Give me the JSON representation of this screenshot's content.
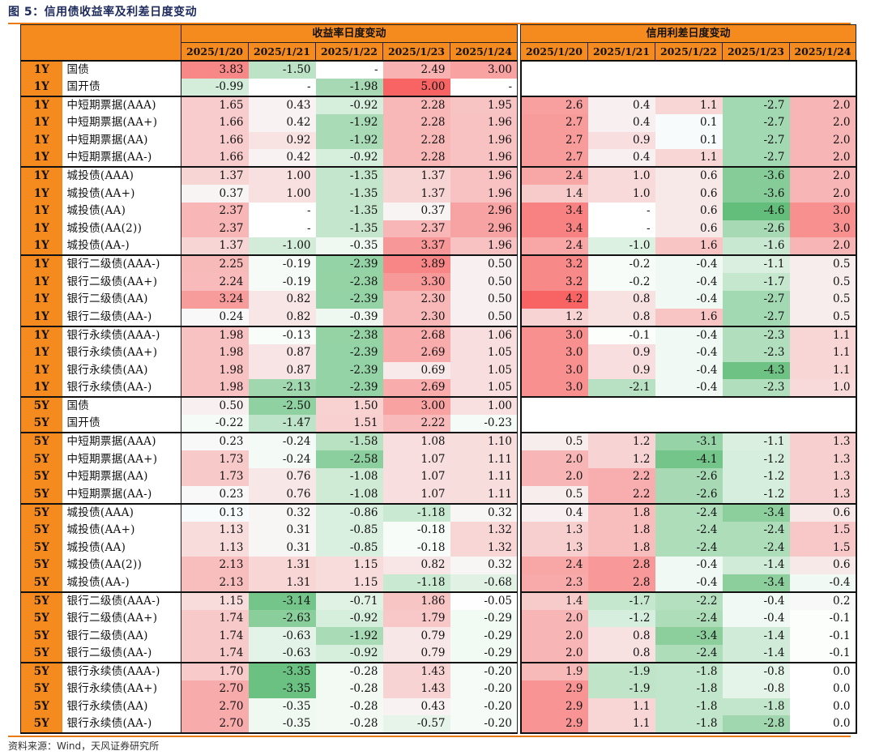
{
  "title": "图 5：信用债收益率及利差日度变动",
  "source": "资料来源：Wind，天风证券研究所",
  "header": {
    "yield_group": "收益率日度变动",
    "spread_group": "信用利差日度变动",
    "dates": [
      "2025/1/20",
      "2025/1/21",
      "2025/1/22",
      "2025/1/23",
      "2025/1/24"
    ]
  },
  "groups": [
    {
      "rows": [
        {
          "tenor": "1Y",
          "name": "国债",
          "yield": [
            "3.83",
            "-1.50",
            "-",
            "2.49",
            "3.00"
          ],
          "spread": null
        },
        {
          "tenor": "1Y",
          "name": "国开债",
          "yield": [
            "-0.99",
            "-",
            "-1.98",
            "5.00",
            "-"
          ],
          "spread": null
        }
      ]
    },
    {
      "rows": [
        {
          "tenor": "1Y",
          "name": "中短期票据(AAA)",
          "yield": [
            "1.65",
            "0.43",
            "-0.92",
            "2.28",
            "1.95"
          ],
          "spread": [
            "2.6",
            "0.4",
            "1.1",
            "-2.7",
            "2.0"
          ]
        },
        {
          "tenor": "1Y",
          "name": "中短期票据(AA+)",
          "yield": [
            "1.66",
            "0.42",
            "-1.92",
            "2.28",
            "1.96"
          ],
          "spread": [
            "2.7",
            "0.4",
            "0.1",
            "-2.7",
            "2.0"
          ]
        },
        {
          "tenor": "1Y",
          "name": "中短期票据(AA)",
          "yield": [
            "1.66",
            "0.92",
            "-1.92",
            "2.28",
            "1.96"
          ],
          "spread": [
            "2.7",
            "0.9",
            "0.1",
            "-2.7",
            "2.0"
          ]
        },
        {
          "tenor": "1Y",
          "name": "中短期票据(AA-)",
          "yield": [
            "1.66",
            "0.42",
            "-0.92",
            "2.28",
            "1.96"
          ],
          "spread": [
            "2.7",
            "0.4",
            "1.1",
            "-2.7",
            "2.0"
          ]
        }
      ]
    },
    {
      "rows": [
        {
          "tenor": "1Y",
          "name": "城投债(AAA)",
          "yield": [
            "1.37",
            "1.00",
            "-1.35",
            "1.37",
            "1.96"
          ],
          "spread": [
            "2.4",
            "1.0",
            "0.6",
            "-3.6",
            "2.0"
          ]
        },
        {
          "tenor": "1Y",
          "name": "城投债(AA+)",
          "yield": [
            "0.37",
            "1.00",
            "-1.35",
            "1.37",
            "1.96"
          ],
          "spread": [
            "1.4",
            "1.0",
            "0.6",
            "-3.6",
            "2.0"
          ]
        },
        {
          "tenor": "1Y",
          "name": "城投债(AA)",
          "yield": [
            "2.37",
            "-",
            "-1.35",
            "0.37",
            "2.96"
          ],
          "spread": [
            "3.4",
            "-",
            "0.6",
            "-4.6",
            "3.0"
          ]
        },
        {
          "tenor": "1Y",
          "name": "城投债(AA(2))",
          "yield": [
            "2.37",
            "-",
            "-1.35",
            "2.37",
            "2.96"
          ],
          "spread": [
            "3.4",
            "-",
            "0.6",
            "-2.6",
            "3.0"
          ]
        },
        {
          "tenor": "1Y",
          "name": "城投债(AA-)",
          "yield": [
            "1.37",
            "-1.00",
            "-0.35",
            "3.37",
            "1.96"
          ],
          "spread": [
            "2.4",
            "-1.0",
            "1.6",
            "-1.6",
            "2.0"
          ]
        }
      ]
    },
    {
      "rows": [
        {
          "tenor": "1Y",
          "name": "银行二级债(AAA-)",
          "yield": [
            "2.25",
            "-0.19",
            "-2.39",
            "3.89",
            "0.50"
          ],
          "spread": [
            "3.2",
            "-0.2",
            "-0.4",
            "-1.1",
            "0.5"
          ]
        },
        {
          "tenor": "1Y",
          "name": "银行二级债(AA+)",
          "yield": [
            "2.24",
            "-0.19",
            "-2.38",
            "3.30",
            "0.50"
          ],
          "spread": [
            "3.2",
            "-0.2",
            "-0.4",
            "-1.7",
            "0.5"
          ]
        },
        {
          "tenor": "1Y",
          "name": "银行二级债(AA)",
          "yield": [
            "3.24",
            "0.82",
            "-2.39",
            "2.30",
            "0.50"
          ],
          "spread": [
            "4.2",
            "0.8",
            "-0.4",
            "-2.7",
            "0.5"
          ]
        },
        {
          "tenor": "1Y",
          "name": "银行二级债(AA-)",
          "yield": [
            "0.24",
            "0.82",
            "-0.39",
            "2.30",
            "0.50"
          ],
          "spread": [
            "1.2",
            "0.8",
            "1.6",
            "-2.7",
            "0.5"
          ]
        }
      ]
    },
    {
      "rows": [
        {
          "tenor": "1Y",
          "name": "银行永续债(AAA-)",
          "yield": [
            "1.98",
            "-0.13",
            "-2.38",
            "2.68",
            "1.06"
          ],
          "spread": [
            "3.0",
            "-0.1",
            "-0.4",
            "-2.3",
            "1.1"
          ]
        },
        {
          "tenor": "1Y",
          "name": "银行永续债(AA+)",
          "yield": [
            "1.98",
            "0.87",
            "-2.39",
            "2.69",
            "1.05"
          ],
          "spread": [
            "3.0",
            "0.9",
            "-0.4",
            "-2.3",
            "1.1"
          ]
        },
        {
          "tenor": "1Y",
          "name": "银行永续债(AA)",
          "yield": [
            "1.98",
            "0.87",
            "-2.39",
            "0.69",
            "1.05"
          ],
          "spread": [
            "3.0",
            "0.9",
            "-0.4",
            "-4.3",
            "1.1"
          ]
        },
        {
          "tenor": "1Y",
          "name": "银行永续债(AA-)",
          "yield": [
            "1.98",
            "-2.13",
            "-2.39",
            "2.69",
            "1.05"
          ],
          "spread": [
            "3.0",
            "-2.1",
            "-0.4",
            "-2.3",
            "1.0"
          ]
        }
      ]
    },
    {
      "rows": [
        {
          "tenor": "5Y",
          "name": "国债",
          "yield": [
            "0.50",
            "-2.50",
            "1.50",
            "3.00",
            "1.00"
          ],
          "spread": null
        },
        {
          "tenor": "5Y",
          "name": "国开债",
          "yield": [
            "-0.22",
            "-1.47",
            "1.51",
            "2.22",
            "-0.23"
          ],
          "spread": null
        }
      ]
    },
    {
      "rows": [
        {
          "tenor": "5Y",
          "name": "中短期票据(AAA)",
          "yield": [
            "0.23",
            "-0.24",
            "-1.58",
            "1.08",
            "1.10"
          ],
          "spread": [
            "0.5",
            "1.2",
            "-3.1",
            "-1.1",
            "1.3"
          ]
        },
        {
          "tenor": "5Y",
          "name": "中短期票据(AA+)",
          "yield": [
            "1.73",
            "-0.24",
            "-2.58",
            "1.07",
            "1.11"
          ],
          "spread": [
            "2.0",
            "1.2",
            "-4.1",
            "-1.2",
            "1.3"
          ]
        },
        {
          "tenor": "5Y",
          "name": "中短期票据(AA)",
          "yield": [
            "1.73",
            "0.76",
            "-1.08",
            "1.07",
            "1.11"
          ],
          "spread": [
            "2.0",
            "2.2",
            "-2.6",
            "-1.2",
            "1.3"
          ]
        },
        {
          "tenor": "5Y",
          "name": "中短期票据(AA-)",
          "yield": [
            "0.23",
            "0.76",
            "-1.08",
            "1.07",
            "1.11"
          ],
          "spread": [
            "0.5",
            "2.2",
            "-2.6",
            "-1.2",
            "1.3"
          ]
        }
      ]
    },
    {
      "rows": [
        {
          "tenor": "5Y",
          "name": "城投债(AAA)",
          "yield": [
            "0.13",
            "0.32",
            "-0.86",
            "-1.18",
            "0.32"
          ],
          "spread": [
            "0.4",
            "1.8",
            "-2.4",
            "-3.4",
            "0.6"
          ]
        },
        {
          "tenor": "5Y",
          "name": "城投债(AA+)",
          "yield": [
            "1.13",
            "0.31",
            "-0.85",
            "-0.18",
            "1.32"
          ],
          "spread": [
            "1.3",
            "1.8",
            "-2.4",
            "-2.4",
            "1.5"
          ]
        },
        {
          "tenor": "5Y",
          "name": "城投债(AA)",
          "yield": [
            "1.13",
            "0.31",
            "-0.85",
            "-0.18",
            "1.32"
          ],
          "spread": [
            "1.3",
            "1.8",
            "-2.4",
            "-2.4",
            "1.5"
          ]
        },
        {
          "tenor": "5Y",
          "name": "城投债(AA(2))",
          "yield": [
            "2.13",
            "1.31",
            "1.15",
            "0.82",
            "0.32"
          ],
          "spread": [
            "2.4",
            "2.8",
            "-0.4",
            "-1.4",
            "0.6"
          ]
        },
        {
          "tenor": "5Y",
          "name": "城投债(AA-)",
          "yield": [
            "2.13",
            "1.31",
            "1.15",
            "-1.18",
            "-0.68"
          ],
          "spread": [
            "2.3",
            "2.8",
            "-0.4",
            "-3.4",
            "-0.4"
          ]
        }
      ]
    },
    {
      "rows": [
        {
          "tenor": "5Y",
          "name": "银行二级债(AAA-)",
          "yield": [
            "1.15",
            "-3.14",
            "-0.71",
            "1.86",
            "-0.05"
          ],
          "spread": [
            "1.4",
            "-1.7",
            "-2.2",
            "-0.4",
            "0.2"
          ]
        },
        {
          "tenor": "5Y",
          "name": "银行二级债(AA+)",
          "yield": [
            "1.74",
            "-2.63",
            "-0.92",
            "1.79",
            "-0.29"
          ],
          "spread": [
            "2.0",
            "-1.2",
            "-2.4",
            "-0.4",
            "-0.1"
          ]
        },
        {
          "tenor": "5Y",
          "name": "银行二级债(AA)",
          "yield": [
            "1.74",
            "-0.63",
            "-1.92",
            "0.79",
            "-0.29"
          ],
          "spread": [
            "2.0",
            "0.8",
            "-3.4",
            "-1.4",
            "-0.1"
          ]
        },
        {
          "tenor": "5Y",
          "name": "银行二级债(AA-)",
          "yield": [
            "1.74",
            "-0.63",
            "-0.92",
            "0.79",
            "-0.29"
          ],
          "spread": [
            "2.0",
            "0.8",
            "-2.4",
            "-1.4",
            "-0.1"
          ]
        }
      ]
    },
    {
      "rows": [
        {
          "tenor": "5Y",
          "name": "银行永续债(AAA-)",
          "yield": [
            "1.70",
            "-3.35",
            "-0.28",
            "1.43",
            "-0.20"
          ],
          "spread": [
            "1.9",
            "-1.9",
            "-1.8",
            "-0.8",
            "0.0"
          ]
        },
        {
          "tenor": "5Y",
          "name": "银行永续债(AA+)",
          "yield": [
            "2.70",
            "-3.35",
            "-0.28",
            "1.43",
            "-0.20"
          ],
          "spread": [
            "2.9",
            "-1.9",
            "-1.8",
            "-0.8",
            "0.0"
          ]
        },
        {
          "tenor": "5Y",
          "name": "银行永续债(AA)",
          "yield": [
            "2.70",
            "-0.35",
            "-0.28",
            "0.43",
            "-0.20"
          ],
          "spread": [
            "2.9",
            "1.1",
            "-1.8",
            "-1.8",
            "0.0"
          ]
        },
        {
          "tenor": "5Y",
          "name": "银行永续债(AA-)",
          "yield": [
            "2.70",
            "-0.35",
            "-0.28",
            "-0.57",
            "-0.20"
          ],
          "spread": [
            "2.9",
            "1.1",
            "-1.8",
            "-2.8",
            "0.0"
          ]
        }
      ]
    }
  ]
}
